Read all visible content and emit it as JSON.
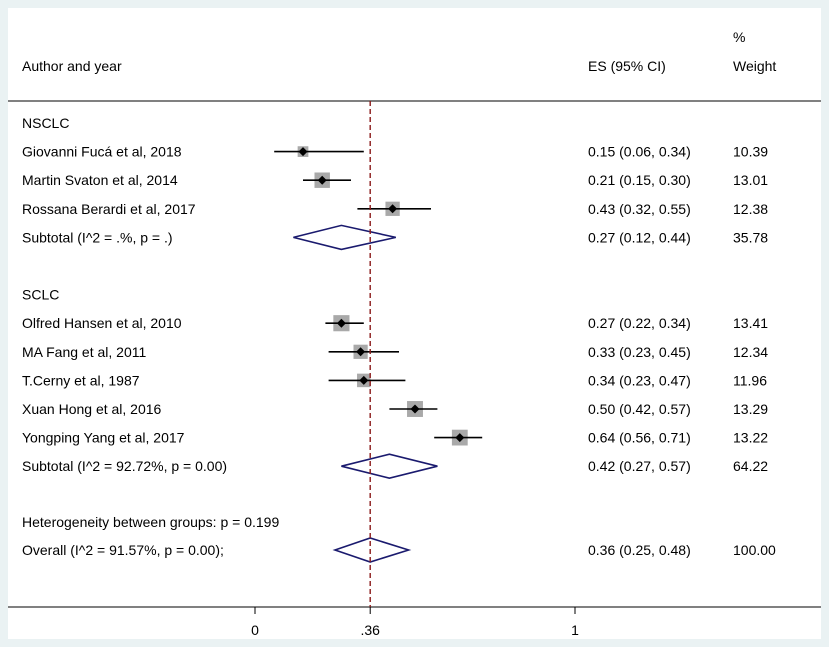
{
  "chart_data": {
    "type": "forest",
    "columns": {
      "author_header": "Author and year",
      "es_header": "ES (95% CI)",
      "weight_header_line1": "%",
      "weight_header_line2": "Weight"
    },
    "x_ticks": [
      "0",
      ".36",
      "1"
    ],
    "tick_values": [
      0,
      0.36,
      1
    ],
    "overall_es": 0.36,
    "xlim": [
      0,
      1
    ],
    "groups": [
      {
        "label": "NSCLC",
        "studies": [
          {
            "label": "Giovanni Fucá et al, 2018",
            "es": 0.15,
            "lo": 0.06,
            "hi": 0.34,
            "es_text": "0.15 (0.06, 0.34)",
            "weight": "10.39",
            "w": 10.39
          },
          {
            "label": "Martin Svaton et al, 2014",
            "es": 0.21,
            "lo": 0.15,
            "hi": 0.3,
            "es_text": "0.21 (0.15, 0.30)",
            "weight": "13.01",
            "w": 13.01
          },
          {
            "label": "Rossana Berardi et al, 2017",
            "es": 0.43,
            "lo": 0.32,
            "hi": 0.55,
            "es_text": "0.43 (0.32, 0.55)",
            "weight": "12.38",
            "w": 12.38
          }
        ],
        "subtotal": {
          "label": "Subtotal  (I^2 = .%, p = .)",
          "es": 0.27,
          "lo": 0.12,
          "hi": 0.44,
          "es_text": "0.27 (0.12, 0.44)",
          "weight": "35.78"
        }
      },
      {
        "label": "SCLC",
        "studies": [
          {
            "label": "Olfred Hansen et al, 2010",
            "es": 0.27,
            "lo": 0.22,
            "hi": 0.34,
            "es_text": "0.27 (0.22, 0.34)",
            "weight": "13.41",
            "w": 13.41
          },
          {
            "label": "MA Fang et al, 2011",
            "es": 0.33,
            "lo": 0.23,
            "hi": 0.45,
            "es_text": "0.33 (0.23, 0.45)",
            "weight": "12.34",
            "w": 12.34
          },
          {
            "label": "T.Cerny et al, 1987",
            "es": 0.34,
            "lo": 0.23,
            "hi": 0.47,
            "es_text": "0.34 (0.23, 0.47)",
            "weight": "11.96",
            "w": 11.96
          },
          {
            "label": "Xuan Hong et al, 2016",
            "es": 0.5,
            "lo": 0.42,
            "hi": 0.57,
            "es_text": "0.50 (0.42, 0.57)",
            "weight": "13.29",
            "w": 13.29
          },
          {
            "label": "Yongping Yang  et al, 2017",
            "es": 0.64,
            "lo": 0.56,
            "hi": 0.71,
            "es_text": "0.64 (0.56, 0.71)",
            "weight": "13.22",
            "w": 13.22
          }
        ],
        "subtotal": {
          "label": "Subtotal  (I^2 = 92.72%, p = 0.00)",
          "es": 0.42,
          "lo": 0.27,
          "hi": 0.57,
          "es_text": "0.42 (0.27, 0.57)",
          "weight": "64.22"
        }
      }
    ],
    "heterogeneity": "Heterogeneity between groups: p = 0.199",
    "overall": {
      "label": "Overall  (I^2 = 91.57%, p = 0.00);",
      "es": 0.36,
      "lo": 0.25,
      "hi": 0.48,
      "es_text": "0.36 (0.25, 0.48)",
      "weight": "100.00"
    }
  },
  "colors": {
    "background": "#eaf2f3",
    "plot": "#ffffff",
    "diamond": "#1a1a6e",
    "ref_line": "#8b1a1a",
    "box": "#a9a9a9"
  }
}
